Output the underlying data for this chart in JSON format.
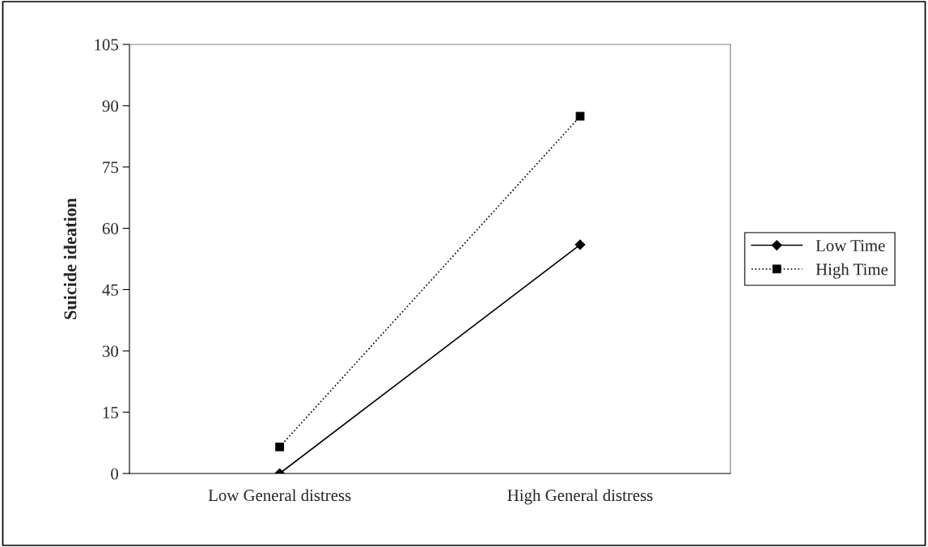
{
  "chart_data": {
    "type": "line",
    "ylabel": "Suicide ideation",
    "categories": [
      "Low General distress",
      "High General distress"
    ],
    "series": [
      {
        "name": "Low Time",
        "color": "#000000",
        "values": [
          0,
          56
        ],
        "marker": "diamond",
        "line_style": "solid"
      },
      {
        "name": "High Time",
        "color": "#000000",
        "values": [
          6.5,
          87.4
        ],
        "marker": "square",
        "line_style": "dotted"
      }
    ],
    "ylim": [
      0,
      105
    ],
    "yticks": [
      0,
      15,
      30,
      45,
      60,
      75,
      90,
      105
    ],
    "grid": false,
    "legend": "right"
  }
}
